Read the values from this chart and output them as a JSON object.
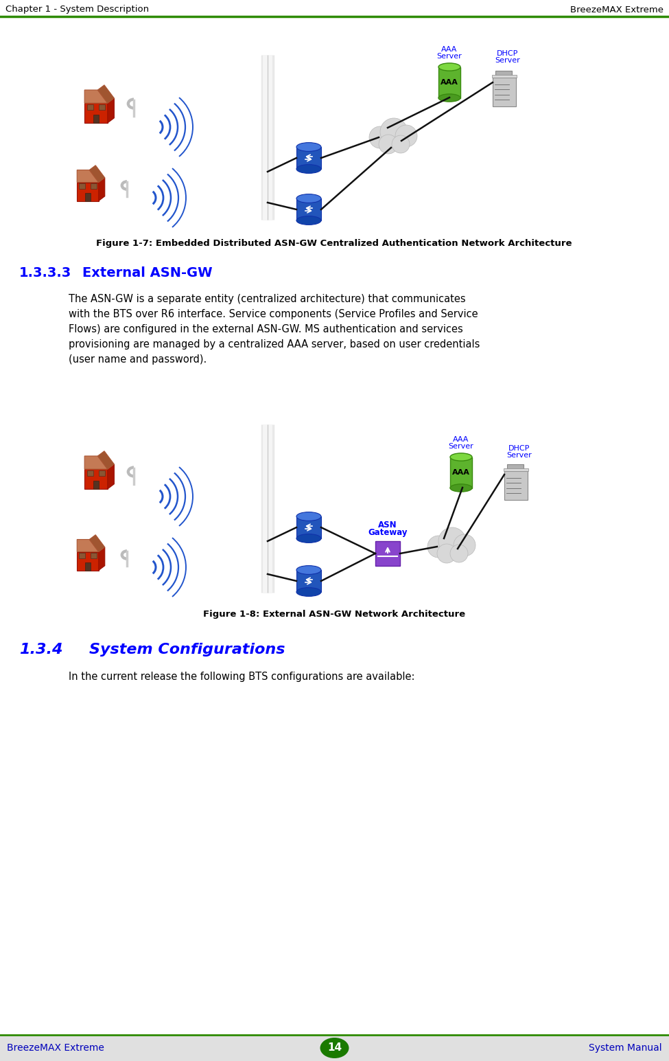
{
  "page_width": 9.75,
  "page_height": 15.45,
  "bg_color": "#ffffff",
  "header_left": "Chapter 1 - System Description",
  "header_right": "BreezeMAX Extreme",
  "header_line_color": "#2e8b00",
  "header_font_size": 9.5,
  "footer_bg_color": "#e0e0e0",
  "footer_left": "BreezeMAX Extreme",
  "footer_right": "System Manual",
  "footer_page": "14",
  "footer_page_bg": "#1a7a00",
  "footer_font_color": "#0000bb",
  "footer_font_size": 10,
  "section_133_title": "1.3.3.3",
  "section_133_sub": "External ASN-GW",
  "section_133_color": "#0000ff",
  "section_133_fontsize": 14,
  "section_133_text_lines": [
    "The ASN-GW is a separate entity (centralized architecture) that communicates",
    "with the BTS over R6 interface. Service components (Service Profiles and Service",
    "Flows) are configured in the external ASN-GW. MS authentication and services",
    "provisioning are managed by a centralized AAA server, based on user credentials",
    "(user name and password)."
  ],
  "section_134_number": "1.3.4",
  "section_134_sub": "System Configurations",
  "section_134_color": "#0000ff",
  "section_134_fontsize": 16,
  "section_134_text": "In the current release the following BTS configurations are available:",
  "fig17_caption": "Figure 1-7: Embedded Distributed ASN-GW Centralized Authentication Network Architecture",
  "fig18_caption": "Figure 1-8: External ASN-GW Network Architecture",
  "aaa_label_color": "#0000ff",
  "dhcp_label_color": "#0000ff",
  "asn_label_color": "#0000ff"
}
